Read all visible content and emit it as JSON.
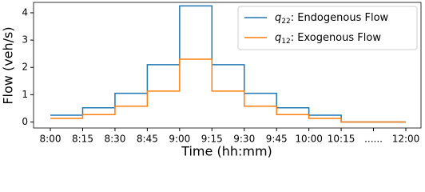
{
  "chart_data": {
    "type": "step",
    "xlabel": "Time (hh:mm)",
    "ylabel": "Flow (veh/s)",
    "categories": [
      "8:00",
      "8:15",
      "8:30",
      "8:45",
      "9:00",
      "9:15",
      "9:30",
      "9:45",
      "10:00",
      "10:15",
      "......",
      "12:00"
    ],
    "xlim": [
      -0.52,
      11.47
    ],
    "ylim": [
      -0.22,
      4.38
    ],
    "yticks": [
      0,
      1,
      2,
      3,
      4
    ],
    "grid": false,
    "legend": "upper right",
    "series": [
      {
        "name": "q22: Endogenous Flow",
        "color": "#1f77b4",
        "values": [
          0.25,
          0.52,
          1.05,
          2.1,
          4.25,
          2.1,
          1.05,
          0.52,
          0.25,
          0,
          0,
          0
        ]
      },
      {
        "name": "q12: Exogenous Flow",
        "color": "#ff7f0e",
        "values": [
          0.13,
          0.27,
          0.58,
          1.13,
          2.3,
          1.13,
          0.58,
          0.27,
          0.13,
          0,
          0,
          0
        ]
      }
    ]
  }
}
